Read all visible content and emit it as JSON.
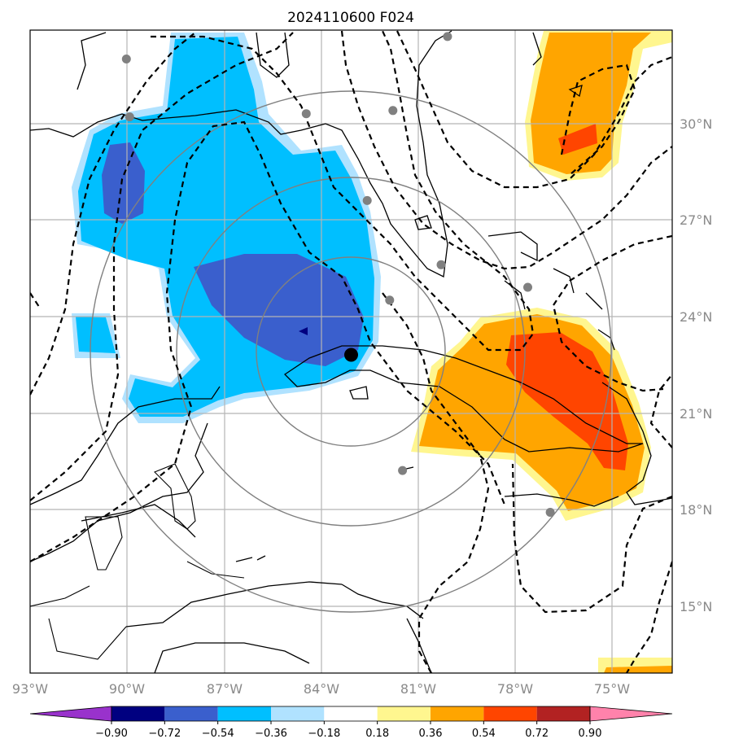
{
  "title": "2024110600 F024",
  "map": {
    "lon_range": [
      -93,
      -73
    ],
    "lat_range": [
      13,
      33
    ],
    "lon_ticks": [
      {
        "value": -93,
        "label": "93°W"
      },
      {
        "value": -90,
        "label": "90°W"
      },
      {
        "value": -87,
        "label": "87°W"
      },
      {
        "value": -84,
        "label": "84°W"
      },
      {
        "value": -81,
        "label": "81°W"
      },
      {
        "value": -78,
        "label": "78°W"
      },
      {
        "value": -75,
        "label": "75°W"
      }
    ],
    "lat_ticks": [
      {
        "value": 15,
        "label": "15°N"
      },
      {
        "value": 18,
        "label": "18°N"
      },
      {
        "value": 21,
        "label": "21°N"
      },
      {
        "value": 24,
        "label": "24°N"
      },
      {
        "value": 27,
        "label": "27°N"
      },
      {
        "value": 30,
        "label": "30°N"
      }
    ],
    "grid": true,
    "center_marker": {
      "lon": -83.0,
      "lat": 22.9,
      "color": "#000000"
    },
    "range_rings_deg": [
      3,
      6,
      9
    ],
    "stations": [
      {
        "lon": -90.0,
        "lat": 32.1
      },
      {
        "lon": -89.9,
        "lat": 30.3
      },
      {
        "lon": -84.4,
        "lat": 30.4
      },
      {
        "lon": -81.7,
        "lat": 30.5
      },
      {
        "lon": -80.0,
        "lat": 32.8
      },
      {
        "lon": -82.5,
        "lat": 27.7
      },
      {
        "lon": -80.2,
        "lat": 25.7
      },
      {
        "lon": -81.8,
        "lat": 24.6
      },
      {
        "lon": -77.5,
        "lat": 25.0
      },
      {
        "lon": -81.4,
        "lat": 19.3
      },
      {
        "lon": -76.8,
        "lat": 18.0
      }
    ]
  },
  "colorbar": {
    "levels": [
      "−0.90",
      "−0.72",
      "−0.54",
      "−0.36",
      "−0.18",
      "0.18",
      "0.36",
      "0.54",
      "0.72",
      "0.90"
    ],
    "colors": [
      "#9932cc",
      "#000080",
      "#3a5fcd",
      "#00bfff",
      "#b0e2ff",
      "#ffffff",
      "#fff68f",
      "#ffa500",
      "#ff4500",
      "#b22222",
      "#ff82ab"
    ]
  }
}
